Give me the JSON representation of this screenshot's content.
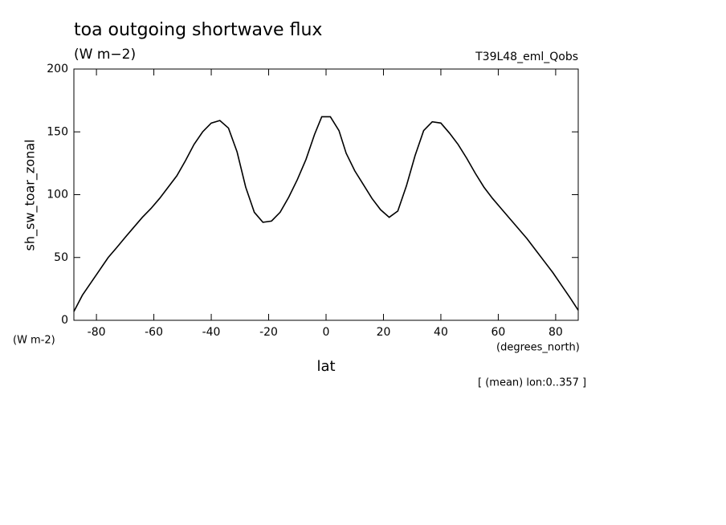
{
  "chart_data": {
    "type": "line",
    "title": "toa outgoing shortwave flux",
    "subtitle": "(W m−2)",
    "dataset_label": "T39L48_eml_Qobs",
    "y_label": "sh_sw_toar_zonal",
    "y_units": "(W m-2)",
    "x_label": "lat",
    "x_units": "(degrees_north)",
    "annotation": "[ (mean) lon:0..357 ]",
    "x": [
      -87.86,
      -84.89,
      -81.9,
      -78.9,
      -75.9,
      -72.9,
      -70,
      -67,
      -64,
      -61,
      -58,
      -55,
      -52,
      -49,
      -46,
      -43,
      -40,
      -37,
      -34,
      -31,
      -28,
      -25,
      -22,
      -19,
      -16,
      -13,
      -10,
      -7,
      -4,
      -1.5,
      1.5,
      4.5,
      7,
      10,
      13,
      16,
      19,
      22,
      25,
      28,
      31,
      34,
      37,
      40,
      43,
      46,
      49,
      52,
      55,
      58,
      61,
      64,
      67,
      70,
      73,
      76,
      79,
      82,
      85,
      87.86
    ],
    "series": [
      {
        "color": "#000000",
        "values": [
          7,
          20,
          30,
          40,
          50,
          58,
          66,
          74,
          82,
          89,
          97,
          106,
          115,
          127,
          140,
          150,
          157,
          159,
          153,
          134,
          106,
          86,
          78,
          79,
          86,
          98,
          112,
          128,
          148,
          162,
          162,
          151,
          133,
          119,
          108,
          97,
          88,
          82,
          87,
          107,
          131,
          151,
          158,
          157,
          149,
          140,
          129,
          117,
          106,
          97,
          89,
          81,
          73,
          65,
          56,
          47,
          38,
          28,
          18,
          8
        ]
      }
    ],
    "xlim": [
      -87.86,
      87.86
    ],
    "ylim": [
      0,
      200
    ],
    "xticks": [
      -80,
      -60,
      -40,
      -20,
      0,
      20,
      40,
      60,
      80
    ],
    "yticks": [
      0,
      50,
      100,
      150,
      200
    ]
  }
}
